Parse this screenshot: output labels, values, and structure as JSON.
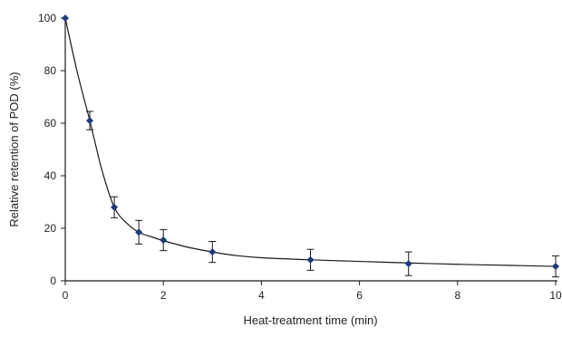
{
  "chart_data": {
    "type": "line",
    "title": "",
    "xlabel": "Heat-treatment time (min)",
    "ylabel": "Relative retention of POD (%)",
    "xlim": [
      0,
      10
    ],
    "ylim": [
      0,
      100
    ],
    "x_ticks": [
      0,
      2,
      4,
      6,
      8,
      10
    ],
    "y_ticks": [
      0,
      20,
      40,
      60,
      80,
      100
    ],
    "grid": false,
    "legend": "none",
    "series": [
      {
        "x": [
          0,
          0.5,
          1,
          1.5,
          2,
          3,
          5,
          7,
          10
        ],
        "y": [
          100,
          61,
          28,
          18.5,
          15.5,
          11,
          8,
          6.5,
          5.5
        ],
        "error": [
          0,
          3.5,
          4,
          4.5,
          4,
          4,
          4,
          4.5,
          4
        ],
        "marker": "diamond",
        "color": "#1f3a7a",
        "line_color": "#1a1a1a"
      }
    ],
    "fitted_curve": {
      "x": [
        0,
        0.25,
        0.5,
        0.75,
        1,
        1.25,
        1.5,
        1.75,
        2,
        2.5,
        3,
        3.5,
        4,
        5,
        6,
        7,
        8,
        9,
        10
      ],
      "y": [
        100,
        79,
        61,
        42,
        28,
        22,
        18.5,
        16.8,
        15.3,
        12.8,
        11,
        9.6,
        8.8,
        8,
        7.4,
        6.8,
        6.3,
        5.9,
        5.5
      ]
    }
  }
}
